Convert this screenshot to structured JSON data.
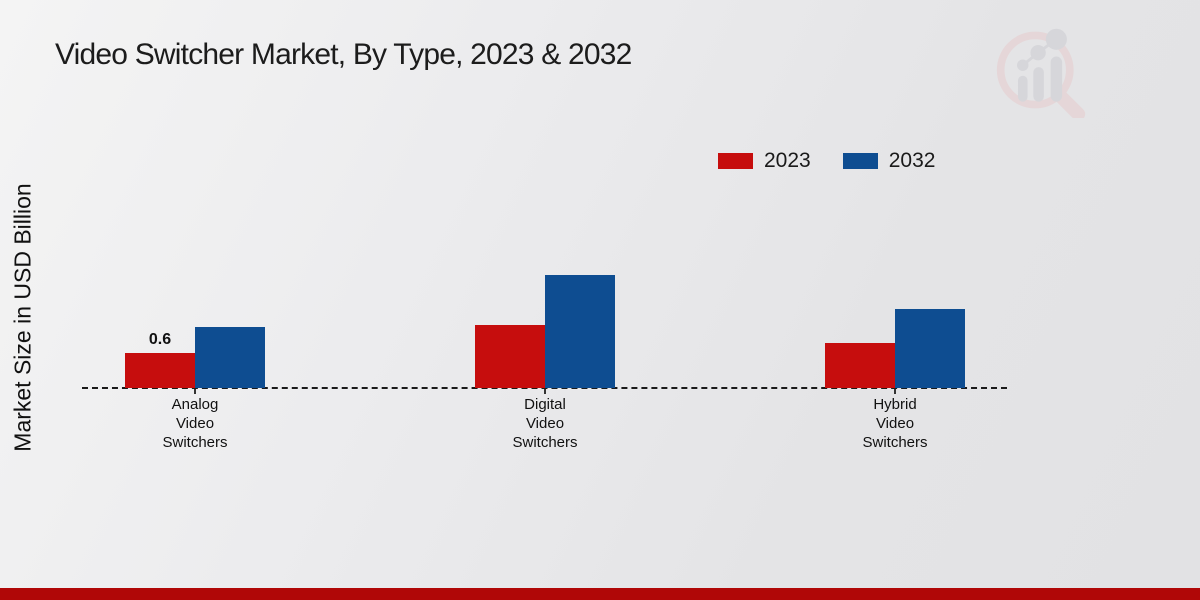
{
  "title": "Video Switcher Market, By Type, 2023 & 2032",
  "y_axis_label": "Market Size in USD Billion",
  "legend": {
    "position": "top-right",
    "items": [
      {
        "label": "2023",
        "color": "#c60d0d"
      },
      {
        "label": "2032",
        "color": "#0e4d91"
      }
    ]
  },
  "icons": {
    "logo": "magnifier-bar-chart-watermark-icon"
  },
  "colors": {
    "series_2023": "#c60d0d",
    "series_2032": "#0e4d91",
    "baseline": "#1a1a1a",
    "footer_bar": "#b00707",
    "background": "#e9e9eb"
  },
  "chart_data": {
    "type": "bar",
    "title": "Video Switcher Market, By Type, 2023 & 2032",
    "ylabel": "Market Size in USD Billion",
    "xlabel": "",
    "categories": [
      "Analog Video Switchers",
      "Digital Video Switchers",
      "Hybrid Video Switchers"
    ],
    "category_label_lines": [
      [
        "Analog",
        "Video",
        "Switchers"
      ],
      [
        "Digital",
        "Video",
        "Switchers"
      ],
      [
        "Hybrid",
        "Video",
        "Switchers"
      ]
    ],
    "series": [
      {
        "name": "2023",
        "color": "#c60d0d",
        "values": [
          0.6,
          1.08,
          0.77
        ]
      },
      {
        "name": "2032",
        "color": "#0e4d91",
        "values": [
          1.05,
          1.93,
          1.35
        ]
      }
    ],
    "annotations": [
      {
        "text": "0.6",
        "series_index": 0,
        "category_index": 0
      }
    ],
    "baseline_value": 0,
    "ylim": [
      0,
      2.2
    ],
    "grid": false,
    "axis_line_style": "dashed",
    "legend_position": "top-right"
  }
}
